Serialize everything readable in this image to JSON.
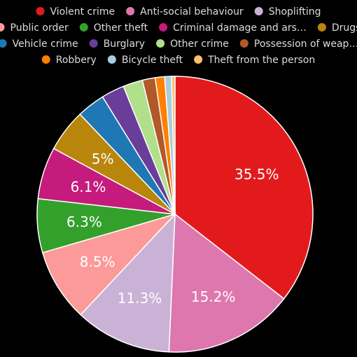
{
  "chart_data": {
    "type": "pie",
    "title": "",
    "legend_position": "top",
    "slices": [
      {
        "label": "Violent crime",
        "value": 35.5,
        "display_label": "Violent crime",
        "color": "#e31a1c",
        "value_label": "35.5%"
      },
      {
        "label": "Anti-social behaviour",
        "value": 15.2,
        "display_label": "Anti-social behaviour",
        "color": "#de77ae",
        "value_label": "15.2%"
      },
      {
        "label": "Shoplifting",
        "value": 11.3,
        "display_label": "Shoplifting",
        "color": "#cab2d6",
        "value_label": "11.3%"
      },
      {
        "label": "Public order",
        "value": 8.5,
        "display_label": "Public order",
        "color": "#fb9a99",
        "value_label": "8.5%"
      },
      {
        "label": "Other theft",
        "value": 6.3,
        "display_label": "Other theft",
        "color": "#33a02c",
        "value_label": "6.3%"
      },
      {
        "label": "Criminal damage and arson",
        "value": 6.1,
        "display_label": "Criminal damage and ars…",
        "color": "#c51b7d",
        "value_label": "6.1%"
      },
      {
        "label": "Drugs",
        "value": 5.0,
        "display_label": "Drugs",
        "color": "#b8860b",
        "value_label": "5%"
      },
      {
        "label": "Vehicle crime",
        "value": 3.3,
        "display_label": "Vehicle crime",
        "color": "#1f78b4",
        "value_label": ""
      },
      {
        "label": "Burglary",
        "value": 2.7,
        "display_label": "Burglary",
        "color": "#6a3d9a",
        "value_label": ""
      },
      {
        "label": "Other crime",
        "value": 2.3,
        "display_label": "Other crime",
        "color": "#b2df8a",
        "value_label": ""
      },
      {
        "label": "Possession of weapons",
        "value": 1.5,
        "display_label": "Possession of weap…",
        "color": "#b15928",
        "value_label": ""
      },
      {
        "label": "Robbery",
        "value": 1.1,
        "display_label": "Robbery",
        "color": "#ff7f00",
        "value_label": ""
      },
      {
        "label": "Bicycle theft",
        "value": 0.8,
        "display_label": "Bicycle theft",
        "color": "#a6cee3",
        "value_label": ""
      },
      {
        "label": "Theft from the person",
        "value": 0.4,
        "display_label": "Theft from the person",
        "color": "#fdbf6f",
        "value_label": ""
      }
    ]
  }
}
